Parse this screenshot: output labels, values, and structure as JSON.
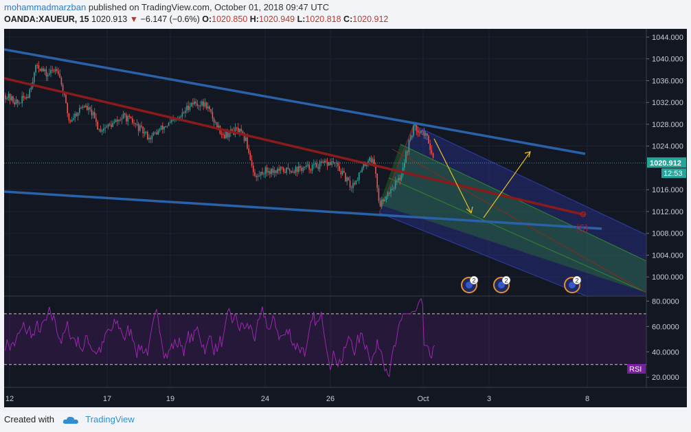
{
  "header": {
    "user": "mohammadmarzban",
    "published_text": "published on TradingView.com, October 01, 2018 09:47 UTC",
    "symbol": "OANDA:XAUEUR, 15",
    "last": "1020.913",
    "change_arrow": "▼",
    "change": "−6.147 (−0.6%)",
    "o_label": "O:",
    "o_value": "1020.850",
    "h_label": "H:",
    "h_value": "1020.949",
    "l_label": "L:",
    "l_value": "1020.818",
    "c_label": "C:",
    "c_value": "1020.912"
  },
  "footer": {
    "created_with": "Created with",
    "brand": "TradingView",
    "logo_icon": "tradingview-cloud-icon"
  },
  "chart_data": {
    "type": "candlestick",
    "price_axis": {
      "ticks": [
        "1044.000",
        "1040.000",
        "1036.000",
        "1032.000",
        "1028.000",
        "1024.000",
        "1016.000",
        "1012.000",
        "1008.000",
        "1004.000",
        "1000.000"
      ],
      "ylim": [
        996.5,
        1045.5
      ]
    },
    "x_axis_labels": [
      "12",
      "17",
      "19",
      "24",
      "26",
      "Oct",
      "3",
      "8"
    ],
    "last_price": {
      "label": "1020.912",
      "countdown": "12:53",
      "value": 1020.912
    },
    "rsi": {
      "label": "RSI",
      "ticks": [
        "80.0000",
        "60.0000",
        "40.0000",
        "20.0000"
      ],
      "upper": 70,
      "lower": 30,
      "ylim": [
        12,
        84
      ]
    },
    "annotations": {
      "wave_label": "(5)",
      "event_badges": [
        "2",
        "2",
        "2"
      ],
      "event_icon": "economic-event-icon"
    },
    "colors": {
      "background": "#131722",
      "up": "#26a69a",
      "down": "#ef5350",
      "rsi_line": "#9c27b0",
      "trendline_blue": "#2962a8",
      "trendline_red": "#8b1a1a",
      "channel_green": "#2e7d32",
      "channel_blue": "#1a237e",
      "arrow": "#e6c229"
    }
  }
}
